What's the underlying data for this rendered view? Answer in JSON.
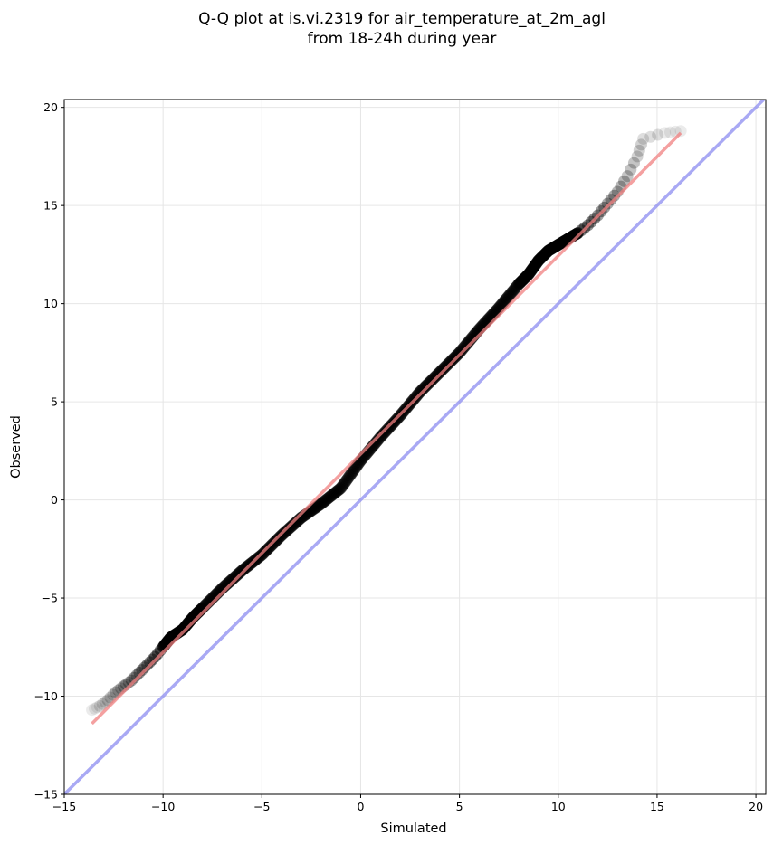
{
  "chart_data": {
    "type": "scatter",
    "title_line1": "Q-Q plot at is.vi.2319 for air_temperature_at_2m_agl",
    "title_line2": "from 18-24h during year",
    "xlabel": "Simulated",
    "ylabel": "Observed",
    "xlim": [
      -15,
      20.5
    ],
    "ylim": [
      -15,
      20.4
    ],
    "xticks": [
      -15,
      -10,
      -5,
      0,
      5,
      10,
      15,
      20
    ],
    "yticks": [
      -15,
      -10,
      -5,
      0,
      5,
      10,
      15,
      20
    ],
    "xtick_labels": [
      "−15",
      "−10",
      "−5",
      "0",
      "5",
      "10",
      "15",
      "20"
    ],
    "ytick_labels": [
      "−15",
      "−10",
      "−5",
      "0",
      "5",
      "10",
      "15",
      "20"
    ],
    "grid": true,
    "colors": {
      "points": "#000000",
      "fit_line": "#f08080",
      "identity_line": "#8c8cf0",
      "grid": "#e6e6e6"
    },
    "quantile_curve": [
      [
        -13.6,
        -10.7
      ],
      [
        -13.2,
        -10.5
      ],
      [
        -12.8,
        -10.2
      ],
      [
        -12.4,
        -9.8
      ],
      [
        -12.0,
        -9.5
      ],
      [
        -11.6,
        -9.2
      ],
      [
        -11.2,
        -8.8
      ],
      [
        -10.8,
        -8.4
      ],
      [
        -10.4,
        -8.0
      ],
      [
        -10.0,
        -7.5
      ],
      [
        -9.6,
        -7.0
      ],
      [
        -9.0,
        -6.6
      ],
      [
        -8.5,
        -6.0
      ],
      [
        -8.0,
        -5.5
      ],
      [
        -7.0,
        -4.5
      ],
      [
        -6.0,
        -3.6
      ],
      [
        -5.0,
        -2.8
      ],
      [
        -4.0,
        -1.8
      ],
      [
        -3.0,
        -0.9
      ],
      [
        -2.0,
        -0.2
      ],
      [
        -1.0,
        0.6
      ],
      [
        0.0,
        2.0
      ],
      [
        1.0,
        3.2
      ],
      [
        2.0,
        4.3
      ],
      [
        3.0,
        5.5
      ],
      [
        4.0,
        6.5
      ],
      [
        5.0,
        7.5
      ],
      [
        6.0,
        8.7
      ],
      [
        7.0,
        9.8
      ],
      [
        8.0,
        11.0
      ],
      [
        8.5,
        11.5
      ],
      [
        9.0,
        12.2
      ],
      [
        9.5,
        12.7
      ],
      [
        10.0,
        13.0
      ],
      [
        10.5,
        13.3
      ],
      [
        11.0,
        13.6
      ],
      [
        11.5,
        14.0
      ],
      [
        12.0,
        14.5
      ],
      [
        12.5,
        15.1
      ],
      [
        13.0,
        15.7
      ],
      [
        13.5,
        16.5
      ],
      [
        14.0,
        17.5
      ],
      [
        14.3,
        18.4
      ],
      [
        15.4,
        18.7
      ],
      [
        16.2,
        18.8
      ]
    ],
    "fit_line": [
      [
        -13.6,
        -11.4
      ],
      [
        16.2,
        18.7
      ]
    ],
    "identity_line": [
      [
        -15,
        -15
      ],
      [
        20.5,
        20.5
      ]
    ]
  }
}
